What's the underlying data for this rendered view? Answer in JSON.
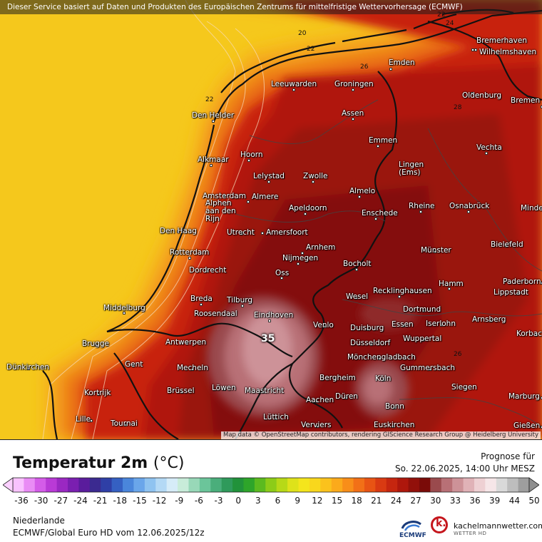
{
  "disclaimer": "Dieser Service basiert auf Daten und Produkten des Europäischen Zentrums für mittelfristige Wettervorhersage (ECMWF)",
  "attribution": "Map data © OpenStreetMap contributors, rendering GIScience Research Group @ Heidelberg University",
  "title": "Temperatur 2m",
  "unit": "(°C)",
  "forecast_label": "Prognose für",
  "forecast_date": "So. 22.06.2025, 14:00 Uhr MESZ",
  "region": "Niederlande",
  "model": "ECMWF/Global Euro HD vom  12.06.2025/12z",
  "ecmwf_logo_text": "ECMWF",
  "brand_name": "kachelmannwetter.com",
  "brand_sub": "WETTER HD",
  "brand_logo_letter": "k.",
  "max_marker": "35",
  "isolines": [
    {
      "label": "20"
    },
    {
      "label": "22"
    },
    {
      "label": "22"
    },
    {
      "label": "22"
    },
    {
      "label": "24"
    },
    {
      "label": "26"
    },
    {
      "label": "26"
    },
    {
      "label": "28"
    }
  ],
  "colorscale": {
    "ticks": [
      "-36",
      "-30",
      "-27",
      "-24",
      "-21",
      "-18",
      "-15",
      "-12",
      "-9",
      "-6",
      "-3",
      "0",
      "3",
      "6",
      "9",
      "12",
      "15",
      "18",
      "21",
      "24",
      "27",
      "30",
      "33",
      "36",
      "39",
      "44",
      "50"
    ],
    "colors": [
      "#f9c2ff",
      "#e98cf5",
      "#d45ce8",
      "#b93ad6",
      "#9a28c2",
      "#7a1fb0",
      "#5a1c9c",
      "#3b2a90",
      "#2f3fa6",
      "#3560c2",
      "#4a86db",
      "#6aa6ea",
      "#8fc3f0",
      "#b4d9f5",
      "#d6ecf8",
      "#c8ecd9",
      "#98d8b8",
      "#6bc59a",
      "#4aae7b",
      "#2f9a5b",
      "#21923a",
      "#2ea52a",
      "#5bba1f",
      "#8ccc18",
      "#b7d917",
      "#dee21a",
      "#f4e51c",
      "#f9d71c",
      "#fbc21c",
      "#fbaa1b",
      "#f88e19",
      "#f27017",
      "#e85414",
      "#d93a12",
      "#c6260f",
      "#ae170c",
      "#92100a",
      "#7a0b08",
      "#9a4a4d",
      "#b87076",
      "#cd9298",
      "#e0b2b7",
      "#eed0d3",
      "#f6e6e8",
      "#d9d9d9",
      "#bdbdbd",
      "#9e9e9e"
    ]
  },
  "cities": [
    {
      "name": "Bremerhaven"
    },
    {
      "name": "Wilhelmshaven"
    },
    {
      "name": "Emden"
    },
    {
      "name": "Leeuwarden"
    },
    {
      "name": "Groningen"
    },
    {
      "name": "Oldenburg"
    },
    {
      "name": "Bremen"
    },
    {
      "name": "Den Helder"
    },
    {
      "name": "Assen"
    },
    {
      "name": "Emmen"
    },
    {
      "name": "Vechta"
    },
    {
      "name": "Alkmaar"
    },
    {
      "name": "Hoorn"
    },
    {
      "name": "Lelystad"
    },
    {
      "name": "Zwolle"
    },
    {
      "name": "Lingen\n(Ems)"
    },
    {
      "name": "Amsterdam"
    },
    {
      "name": "Almere"
    },
    {
      "name": "Almelo"
    },
    {
      "name": "Alphen\naan den\nRijn"
    },
    {
      "name": "Apeldoorn"
    },
    {
      "name": "Enschede"
    },
    {
      "name": "Rheine"
    },
    {
      "name": "Osnabrück"
    },
    {
      "name": "Minden"
    },
    {
      "name": "Den Haag"
    },
    {
      "name": "Utrecht"
    },
    {
      "name": "Amersfoort"
    },
    {
      "name": "Bielefeld"
    },
    {
      "name": "Rotterdam"
    },
    {
      "name": "Arnhem"
    },
    {
      "name": "Münster"
    },
    {
      "name": "Dordrecht"
    },
    {
      "name": "Nijmegen"
    },
    {
      "name": "Bocholt"
    },
    {
      "name": "Oss"
    },
    {
      "name": "Hamm"
    },
    {
      "name": "Paderborn"
    },
    {
      "name": "Breda"
    },
    {
      "name": "Tilburg"
    },
    {
      "name": "Wesel"
    },
    {
      "name": "Recklinghausen"
    },
    {
      "name": "Lippstadt"
    },
    {
      "name": "Middelburg"
    },
    {
      "name": "Roosendaal"
    },
    {
      "name": "Eindhoven"
    },
    {
      "name": "Dortmund"
    },
    {
      "name": "Iserlohn"
    },
    {
      "name": "Arnsberg"
    },
    {
      "name": "Venlo"
    },
    {
      "name": "Duisburg"
    },
    {
      "name": "Essen"
    },
    {
      "name": "Wuppertal"
    },
    {
      "name": "Korbach"
    },
    {
      "name": "Antwerpen"
    },
    {
      "name": "Brugge"
    },
    {
      "name": "Düsseldorf"
    },
    {
      "name": "Mönchengladbach"
    },
    {
      "name": "Dünkirchen"
    },
    {
      "name": "Gent"
    },
    {
      "name": "Mecheln"
    },
    {
      "name": "Gummersbach"
    },
    {
      "name": "Kortrijk"
    },
    {
      "name": "Bergheim"
    },
    {
      "name": "Köln"
    },
    {
      "name": "Brüssel"
    },
    {
      "name": "Löwen"
    },
    {
      "name": "Maastricht"
    },
    {
      "name": "Siegen"
    },
    {
      "name": "Düren"
    },
    {
      "name": "Aachen"
    },
    {
      "name": "Marburg"
    },
    {
      "name": "Bonn"
    },
    {
      "name": "Lille"
    },
    {
      "name": "Tournai"
    },
    {
      "name": "Lüttich"
    },
    {
      "name": "Gießen"
    },
    {
      "name": "Verviers"
    },
    {
      "name": "Euskirchen"
    }
  ]
}
